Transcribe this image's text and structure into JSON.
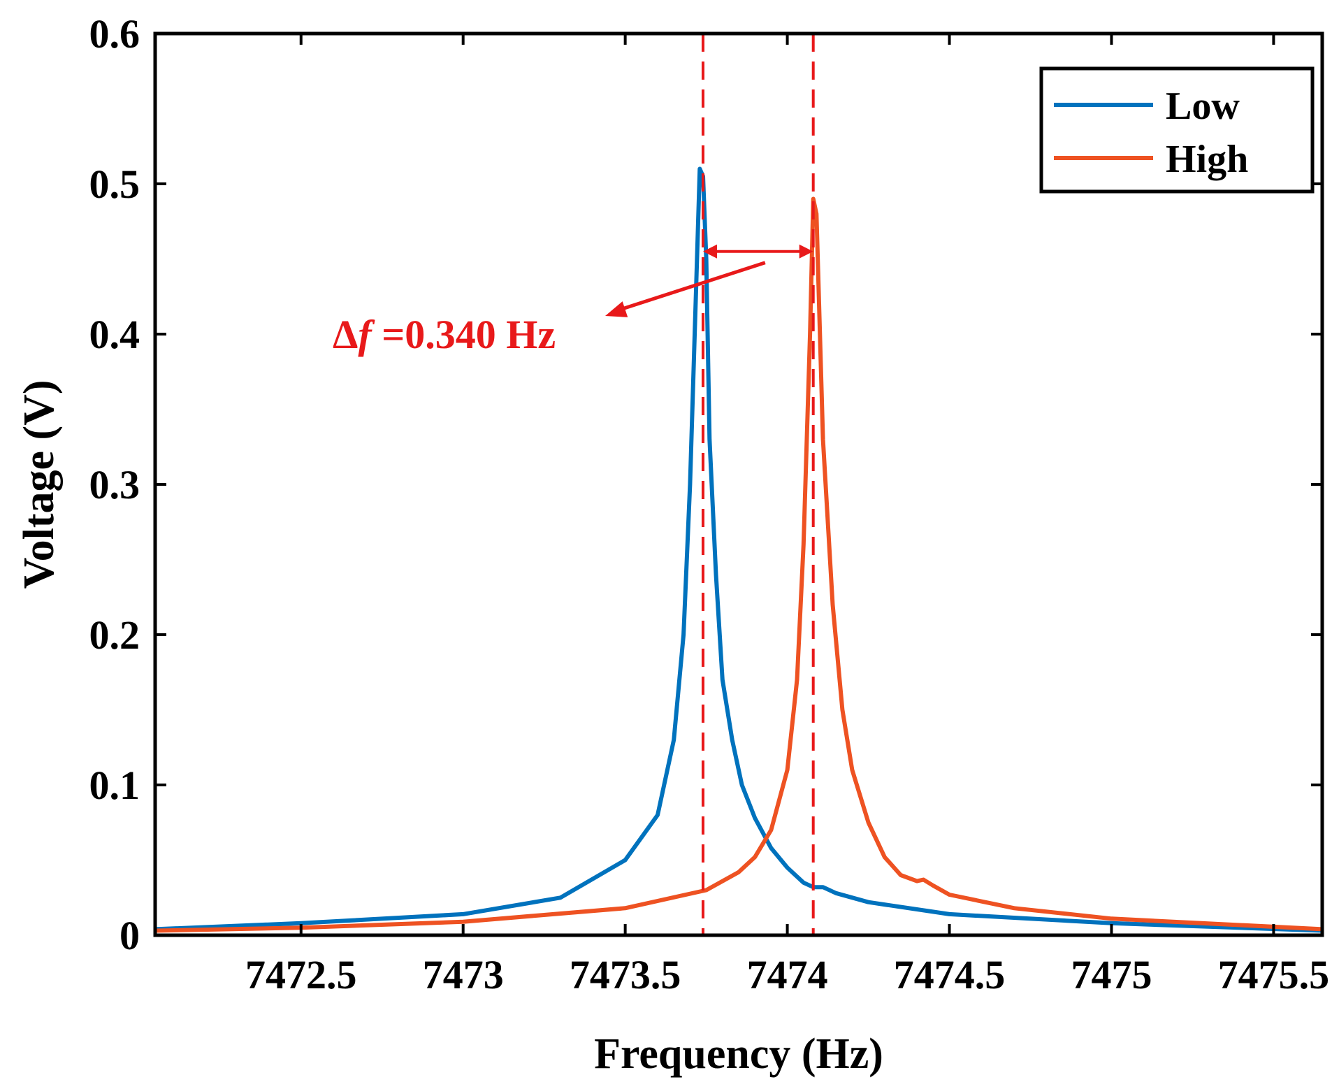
{
  "chart_data": {
    "type": "line",
    "title": "",
    "xlabel": "Frequency (Hz)",
    "ylabel": "Voltage (V)",
    "xlim": [
      7472.05,
      7475.65
    ],
    "ylim": [
      0,
      0.6
    ],
    "xticks": [
      7472.5,
      7473,
      7473.5,
      7474,
      7474.5,
      7475,
      7475.5
    ],
    "xtick_labels": [
      "7472.5",
      "7473",
      "7473.5",
      "7474",
      "7474.5",
      "7475",
      "7475.5"
    ],
    "yticks": [
      0,
      0.1,
      0.2,
      0.3,
      0.4,
      0.5,
      0.6
    ],
    "ytick_labels": [
      "0",
      "0.1",
      "0.2",
      "0.3",
      "0.4",
      "0.5",
      "0.6"
    ],
    "grid": false,
    "legend_position": "top-right",
    "series": [
      {
        "name": "Low",
        "color": "#0072BD",
        "peak_frequency": 7473.74,
        "x": [
          7472.05,
          7472.5,
          7473.0,
          7473.3,
          7473.5,
          7473.6,
          7473.65,
          7473.68,
          7473.7,
          7473.72,
          7473.73,
          7473.74,
          7473.75,
          7473.76,
          7473.78,
          7473.8,
          7473.83,
          7473.86,
          7473.9,
          7473.95,
          7474.0,
          7474.05,
          7474.08,
          7474.11,
          7474.15,
          7474.25,
          7474.5,
          7475.0,
          7475.65
        ],
        "y": [
          0.004,
          0.008,
          0.014,
          0.025,
          0.05,
          0.08,
          0.13,
          0.2,
          0.3,
          0.44,
          0.51,
          0.505,
          0.45,
          0.33,
          0.24,
          0.17,
          0.13,
          0.1,
          0.078,
          0.058,
          0.045,
          0.035,
          0.032,
          0.032,
          0.028,
          0.022,
          0.014,
          0.008,
          0.003
        ]
      },
      {
        "name": "High",
        "color": "#EE5222",
        "peak_frequency": 7474.08,
        "x": [
          7472.05,
          7472.5,
          7473.0,
          7473.5,
          7473.75,
          7473.85,
          7473.9,
          7473.95,
          7474.0,
          7474.03,
          7474.05,
          7474.07,
          7474.08,
          7474.09,
          7474.11,
          7474.14,
          7474.17,
          7474.2,
          7474.25,
          7474.3,
          7474.35,
          7474.4,
          7474.42,
          7474.45,
          7474.5,
          7474.7,
          7475.0,
          7475.65
        ],
        "y": [
          0.003,
          0.005,
          0.009,
          0.018,
          0.03,
          0.042,
          0.052,
          0.07,
          0.11,
          0.17,
          0.26,
          0.4,
          0.49,
          0.48,
          0.33,
          0.22,
          0.15,
          0.11,
          0.075,
          0.052,
          0.04,
          0.036,
          0.037,
          0.033,
          0.027,
          0.018,
          0.011,
          0.004
        ]
      }
    ],
    "reference_lines": [
      7473.74,
      7474.08
    ],
    "annotation": {
      "delta_symbol": "Δ",
      "variable": "f",
      "text": " =0.340 Hz",
      "color": "#E8191A",
      "arrow_y": 0.455
    }
  }
}
